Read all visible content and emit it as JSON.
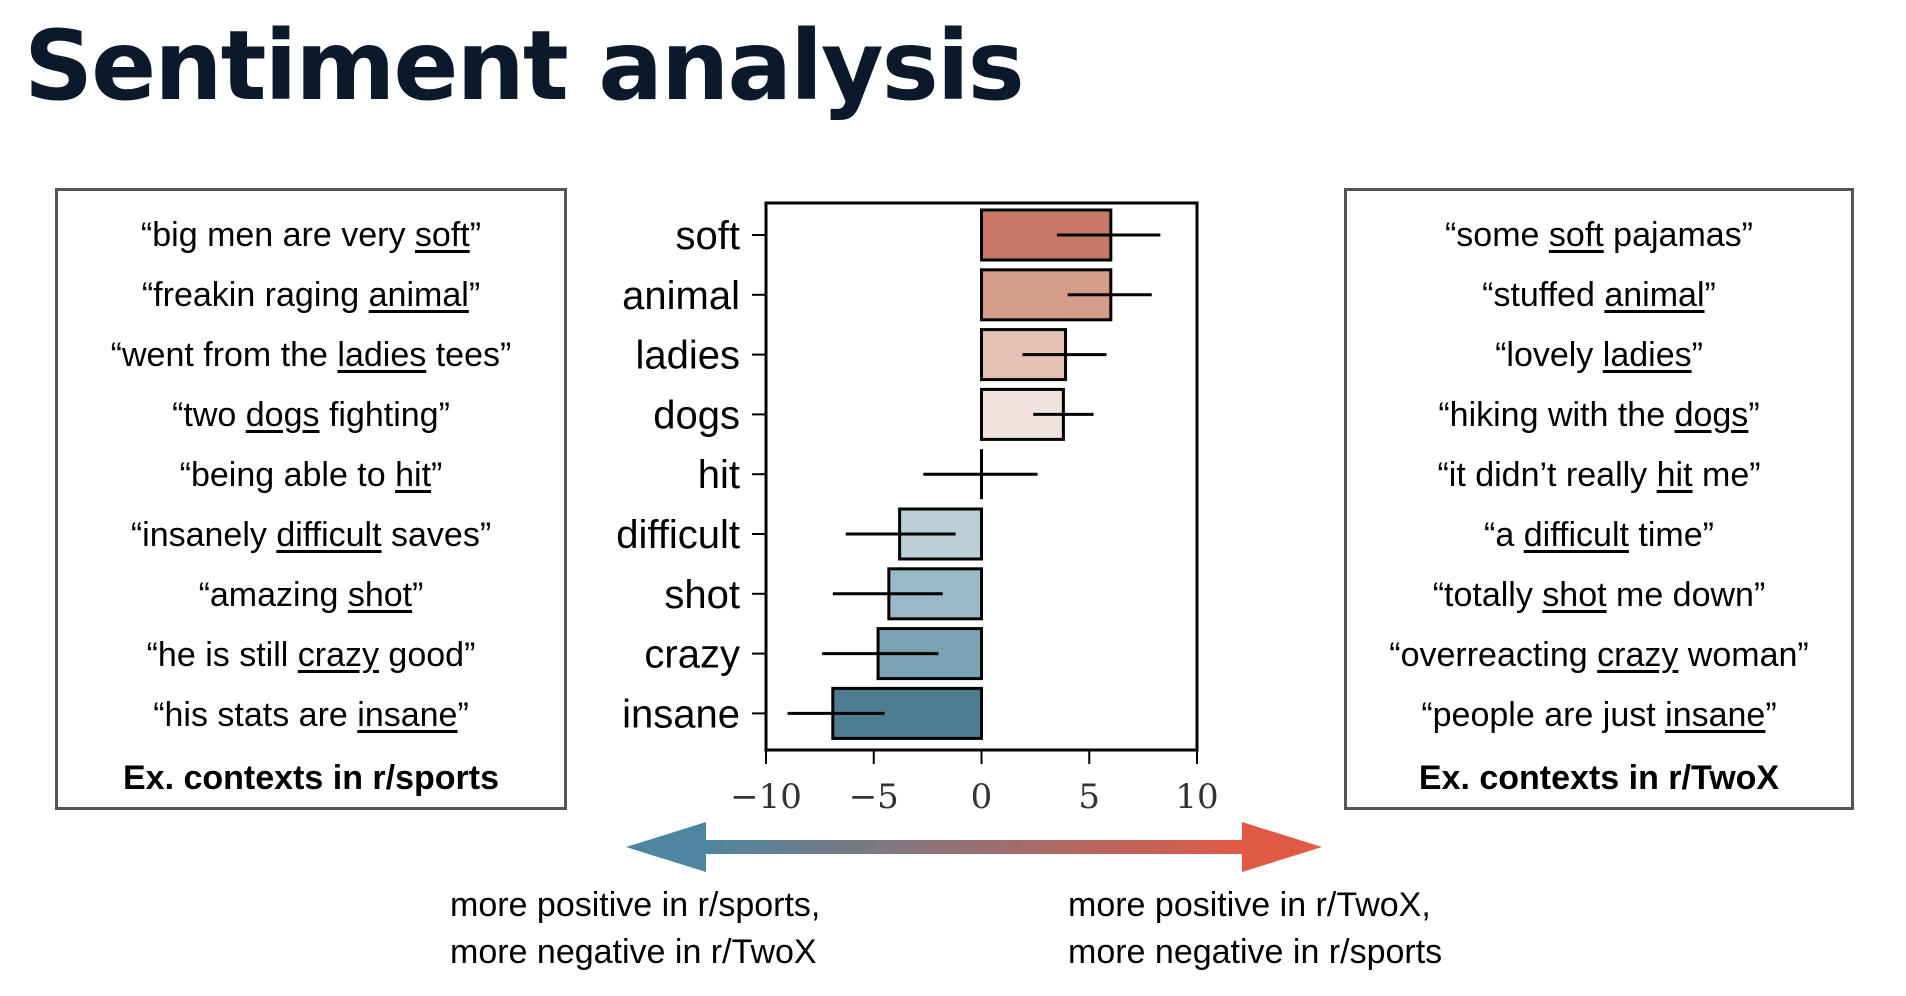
{
  "title": "Sentiment analysis",
  "left_box": {
    "caption": "Ex. contexts in r/sports",
    "examples": [
      {
        "pre": "“big men are very ",
        "word": "soft",
        "post": "”"
      },
      {
        "pre": "“freakin raging ",
        "word": "animal",
        "post": "”"
      },
      {
        "pre": "“went from the ",
        "word": "ladies",
        "post": " tees”"
      },
      {
        "pre": "“two ",
        "word": "dogs",
        "post": " fighting”"
      },
      {
        "pre": "“being able to ",
        "word": "hit",
        "post": "”"
      },
      {
        "pre": "“insanely ",
        "word": "difficult",
        "post": " saves”"
      },
      {
        "pre": "“amazing ",
        "word": "shot",
        "post": "”"
      },
      {
        "pre": "“he is still ",
        "word": "crazy",
        "post": " good”"
      },
      {
        "pre": "“his stats are ",
        "word": "insane",
        "post": "”"
      }
    ]
  },
  "right_box": {
    "caption": "Ex. contexts in r/TwoX",
    "examples": [
      {
        "pre": "“some ",
        "word": "soft",
        "post": " pajamas”"
      },
      {
        "pre": "“stuffed ",
        "word": "animal",
        "post": "”"
      },
      {
        "pre": "“lovely ",
        "word": "ladies",
        "post": "”"
      },
      {
        "pre": "“hiking with the ",
        "word": "dogs",
        "post": "”"
      },
      {
        "pre": "“it didn’t really ",
        "word": "hit",
        "post": " me”"
      },
      {
        "pre": "“a ",
        "word": "difficult",
        "post": " time”"
      },
      {
        "pre": "“totally ",
        "word": "shot",
        "post": " me down”"
      },
      {
        "pre": "“overreacting ",
        "word": "crazy",
        "post": " woman”"
      },
      {
        "pre": "“people are just ",
        "word": "insane",
        "post": "”"
      }
    ]
  },
  "chart_data": {
    "type": "bar",
    "orientation": "horizontal",
    "categories": [
      "soft",
      "animal",
      "ladies",
      "dogs",
      "hit",
      "difficult",
      "shot",
      "crazy",
      "insane"
    ],
    "values": [
      6.0,
      6.0,
      3.9,
      3.8,
      0.0,
      -3.8,
      -4.3,
      -4.8,
      -6.9
    ],
    "error_low": [
      3.5,
      4.0,
      1.9,
      2.4,
      -2.7,
      -6.3,
      -6.9,
      -7.4,
      -9.0
    ],
    "error_high": [
      8.3,
      7.9,
      5.8,
      5.2,
      2.6,
      -1.2,
      -1.8,
      -2.0,
      -4.5
    ],
    "bar_colors": [
      "#c67a66",
      "#d59c8a",
      "#e6c1b5",
      "#f1e2df",
      "#ffffff",
      "#bccfd8",
      "#99b9c6",
      "#7aa3b3",
      "#4e7c91"
    ],
    "xlim": [
      -10,
      10
    ],
    "xticks": [
      "−10",
      "−5",
      "0",
      "5",
      "10"
    ],
    "xtick_values": [
      -10,
      -5,
      0,
      5,
      10
    ],
    "title": "",
    "xlabel": "",
    "ylabel": "",
    "grid": false
  },
  "arrow": {
    "left_color": "#4e86a0",
    "right_color": "#e05a44"
  },
  "notes": {
    "left": [
      "more positive in r/sports,",
      "more negative in r/TwoX"
    ],
    "right": [
      "more positive in r/TwoX,",
      "more negative in r/sports"
    ]
  }
}
